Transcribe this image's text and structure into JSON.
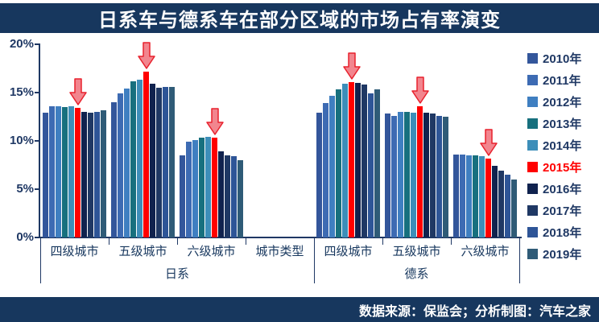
{
  "header": {
    "title": "日系车与德系车在部分区域的市场占有率演变"
  },
  "footer": {
    "text": "数据来源：保监会；分析制图：汽车之家"
  },
  "colors": {
    "banner_bg": "#17375E",
    "axis": "#1F3864",
    "highlight": "#FF0000",
    "arrow_fill": "#F2858E",
    "arrow_stroke": "#E8212D"
  },
  "chart_data": {
    "type": "bar",
    "title": "日系车与德系车在部分区域的市场占有率演变",
    "xlabel": "城市类型",
    "ylabel": "",
    "ylim": [
      0,
      20
    ],
    "grid": false,
    "legend_position": "right",
    "ytick_labels": [
      "20%",
      "15%",
      "10%",
      "5%",
      "0%"
    ],
    "ytick_values": [
      20,
      15,
      10,
      5,
      0
    ],
    "series_labels": [
      "2010年",
      "2011年",
      "2012年",
      "2013年",
      "2014年",
      "2015年",
      "2016年",
      "2017年",
      "2018年",
      "2019年"
    ],
    "series_colors": [
      "#33569B",
      "#3D6BB3",
      "#3F7FC1",
      "#17707E",
      "#3D8EB9",
      "#FF0000",
      "#10224E",
      "#1F3864",
      "#2E5597",
      "#2F5B77"
    ],
    "highlight_series": "2015年",
    "annotation": "red down arrows mark the 2015年 bar in every city-tier group",
    "panels": [
      {
        "label": "日系",
        "groups": [
          {
            "label": "四级城市",
            "arrow_over": "2015年",
            "values": [
              12.9,
              13.6,
              13.6,
              13.5,
              13.6,
              13.4,
              13.0,
              12.9,
              13.0,
              13.2
            ]
          },
          {
            "label": "五级城市",
            "arrow_over": "2015年",
            "values": [
              14.0,
              14.9,
              15.4,
              16.2,
              16.3,
              17.2,
              15.9,
              15.5,
              15.6,
              15.6
            ]
          },
          {
            "label": "六级城市",
            "arrow_over": "2015年",
            "values": [
              8.5,
              9.9,
              10.1,
              10.3,
              10.4,
              10.3,
              8.9,
              8.5,
              8.4,
              8.0
            ]
          },
          {
            "label": "城市类型",
            "values": []
          }
        ]
      },
      {
        "label": "德系",
        "groups": [
          {
            "label": "四级城市",
            "arrow_over": "2015年",
            "values": [
              12.9,
              13.9,
              14.7,
              15.3,
              15.9,
              16.1,
              16.0,
              15.8,
              14.9,
              15.3
            ]
          },
          {
            "label": "五级城市",
            "arrow_over": "2015年",
            "values": [
              12.8,
              12.6,
              13.0,
              13.0,
              12.9,
              13.6,
              12.9,
              12.8,
              12.6,
              12.5
            ]
          },
          {
            "label": "六级城市",
            "arrow_over": "2015年",
            "values": [
              8.6,
              8.6,
              8.5,
              8.5,
              8.4,
              8.2,
              7.4,
              6.9,
              6.5,
              6.0
            ]
          }
        ]
      }
    ]
  }
}
